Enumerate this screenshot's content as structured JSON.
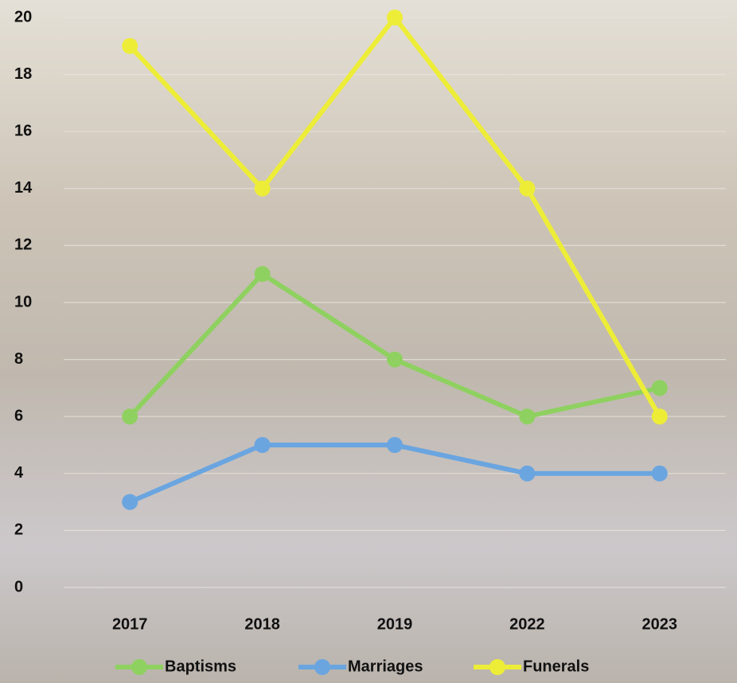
{
  "chart_data": {
    "type": "line",
    "categories": [
      "2017",
      "2018",
      "2019",
      "2022",
      "2023"
    ],
    "series": [
      {
        "name": "Baptisms",
        "color": "#8fd160",
        "values": [
          6,
          11,
          8,
          6,
          7
        ]
      },
      {
        "name": "Marriages",
        "color": "#6aa5e0",
        "values": [
          3,
          5,
          5,
          4,
          4
        ]
      },
      {
        "name": "Funerals",
        "color": "#eded38",
        "values": [
          19,
          14,
          20,
          14,
          6
        ]
      }
    ],
    "ylim": [
      0,
      20
    ],
    "yticks": [
      0,
      2,
      4,
      6,
      8,
      10,
      12,
      14,
      16,
      18,
      20
    ],
    "grid": true,
    "legend": "bottom"
  }
}
